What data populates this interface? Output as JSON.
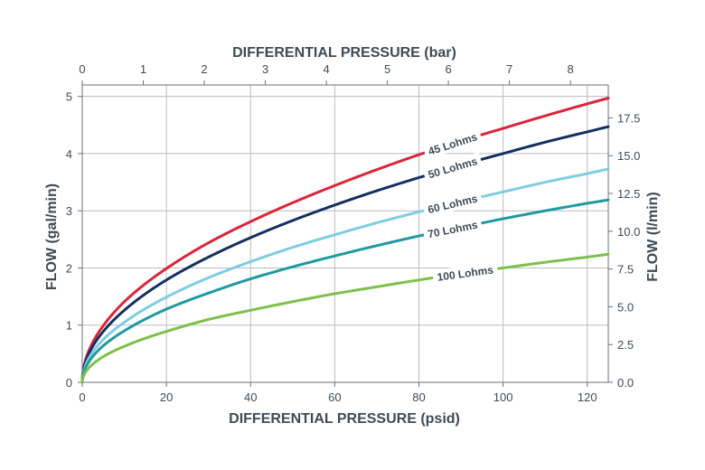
{
  "chart_data": {
    "type": "line",
    "x": {
      "label": "DIFFERENTIAL PRESSURE (psid)",
      "range": [
        0,
        125
      ],
      "ticks": [
        0,
        20,
        40,
        60,
        80,
        100,
        120
      ]
    },
    "x2": {
      "label": "DIFFERENTIAL PRESSURE (bar)",
      "range": [
        0,
        8.62
      ],
      "ticks": [
        0,
        1,
        2,
        3,
        4,
        5,
        6,
        7,
        8
      ]
    },
    "y": {
      "label": "FLOW (gal/min)",
      "range": [
        0,
        5.2
      ],
      "ticks": [
        0,
        1,
        2,
        3,
        4,
        5
      ]
    },
    "y2": {
      "label": "FLOW (l/min)",
      "range": [
        0,
        19.68
      ],
      "ticks": [
        "0.0",
        "2.5",
        "5.0",
        "7.5",
        "10.0",
        "12.5",
        "15.0",
        "17.5"
      ]
    },
    "grid": true,
    "series": [
      {
        "name": "45 Lohms",
        "color": "#d9263a",
        "x": [
          0,
          5,
          10,
          20,
          30,
          40,
          50,
          60,
          70,
          80,
          90,
          100,
          110,
          120,
          125
        ],
        "values": [
          0,
          0.99,
          1.41,
          1.99,
          2.44,
          2.81,
          3.14,
          3.44,
          3.72,
          3.98,
          4.22,
          4.44,
          4.66,
          4.87,
          4.97
        ]
      },
      {
        "name": "50 Lohms",
        "color": "#14305f",
        "x": [
          0,
          5,
          10,
          20,
          30,
          40,
          50,
          60,
          70,
          80,
          90,
          100,
          110,
          120,
          125
        ],
        "values": [
          0,
          0.89,
          1.26,
          1.79,
          2.19,
          2.53,
          2.83,
          3.1,
          3.35,
          3.58,
          3.8,
          4.0,
          4.2,
          4.38,
          4.47
        ]
      },
      {
        "name": "60 Lohms",
        "color": "#7fcde0",
        "x": [
          0,
          5,
          10,
          20,
          30,
          40,
          50,
          60,
          70,
          80,
          90,
          100,
          110,
          120,
          125
        ],
        "values": [
          0,
          0.75,
          1.05,
          1.49,
          1.83,
          2.11,
          2.36,
          2.58,
          2.79,
          2.98,
          3.16,
          3.33,
          3.5,
          3.65,
          3.73
        ]
      },
      {
        "name": "70 Lohms",
        "color": "#1f9aa0",
        "x": [
          0,
          5,
          10,
          20,
          30,
          40,
          50,
          60,
          70,
          80,
          90,
          100,
          110,
          120,
          125
        ],
        "values": [
          0,
          0.64,
          0.9,
          1.28,
          1.56,
          1.81,
          2.02,
          2.21,
          2.39,
          2.56,
          2.71,
          2.86,
          3.0,
          3.13,
          3.19
        ]
      },
      {
        "name": "100 Lohms",
        "color": "#7dc04b",
        "x": [
          0,
          5,
          10,
          20,
          30,
          40,
          50,
          60,
          70,
          80,
          90,
          100,
          110,
          120,
          125
        ],
        "values": [
          0,
          0.45,
          0.63,
          0.89,
          1.1,
          1.26,
          1.41,
          1.55,
          1.67,
          1.79,
          1.9,
          2.0,
          2.1,
          2.19,
          2.24
        ]
      }
    ],
    "labels": [
      {
        "text": "45 Lohms",
        "series": 0,
        "at_x": 88
      },
      {
        "text": "50 Lohms",
        "series": 1,
        "at_x": 88
      },
      {
        "text": "60 Lohms",
        "series": 2,
        "at_x": 88
      },
      {
        "text": "70 Lohms",
        "series": 3,
        "at_x": 88
      },
      {
        "text": "100 Lohms",
        "series": 4,
        "at_x": 91
      }
    ]
  }
}
